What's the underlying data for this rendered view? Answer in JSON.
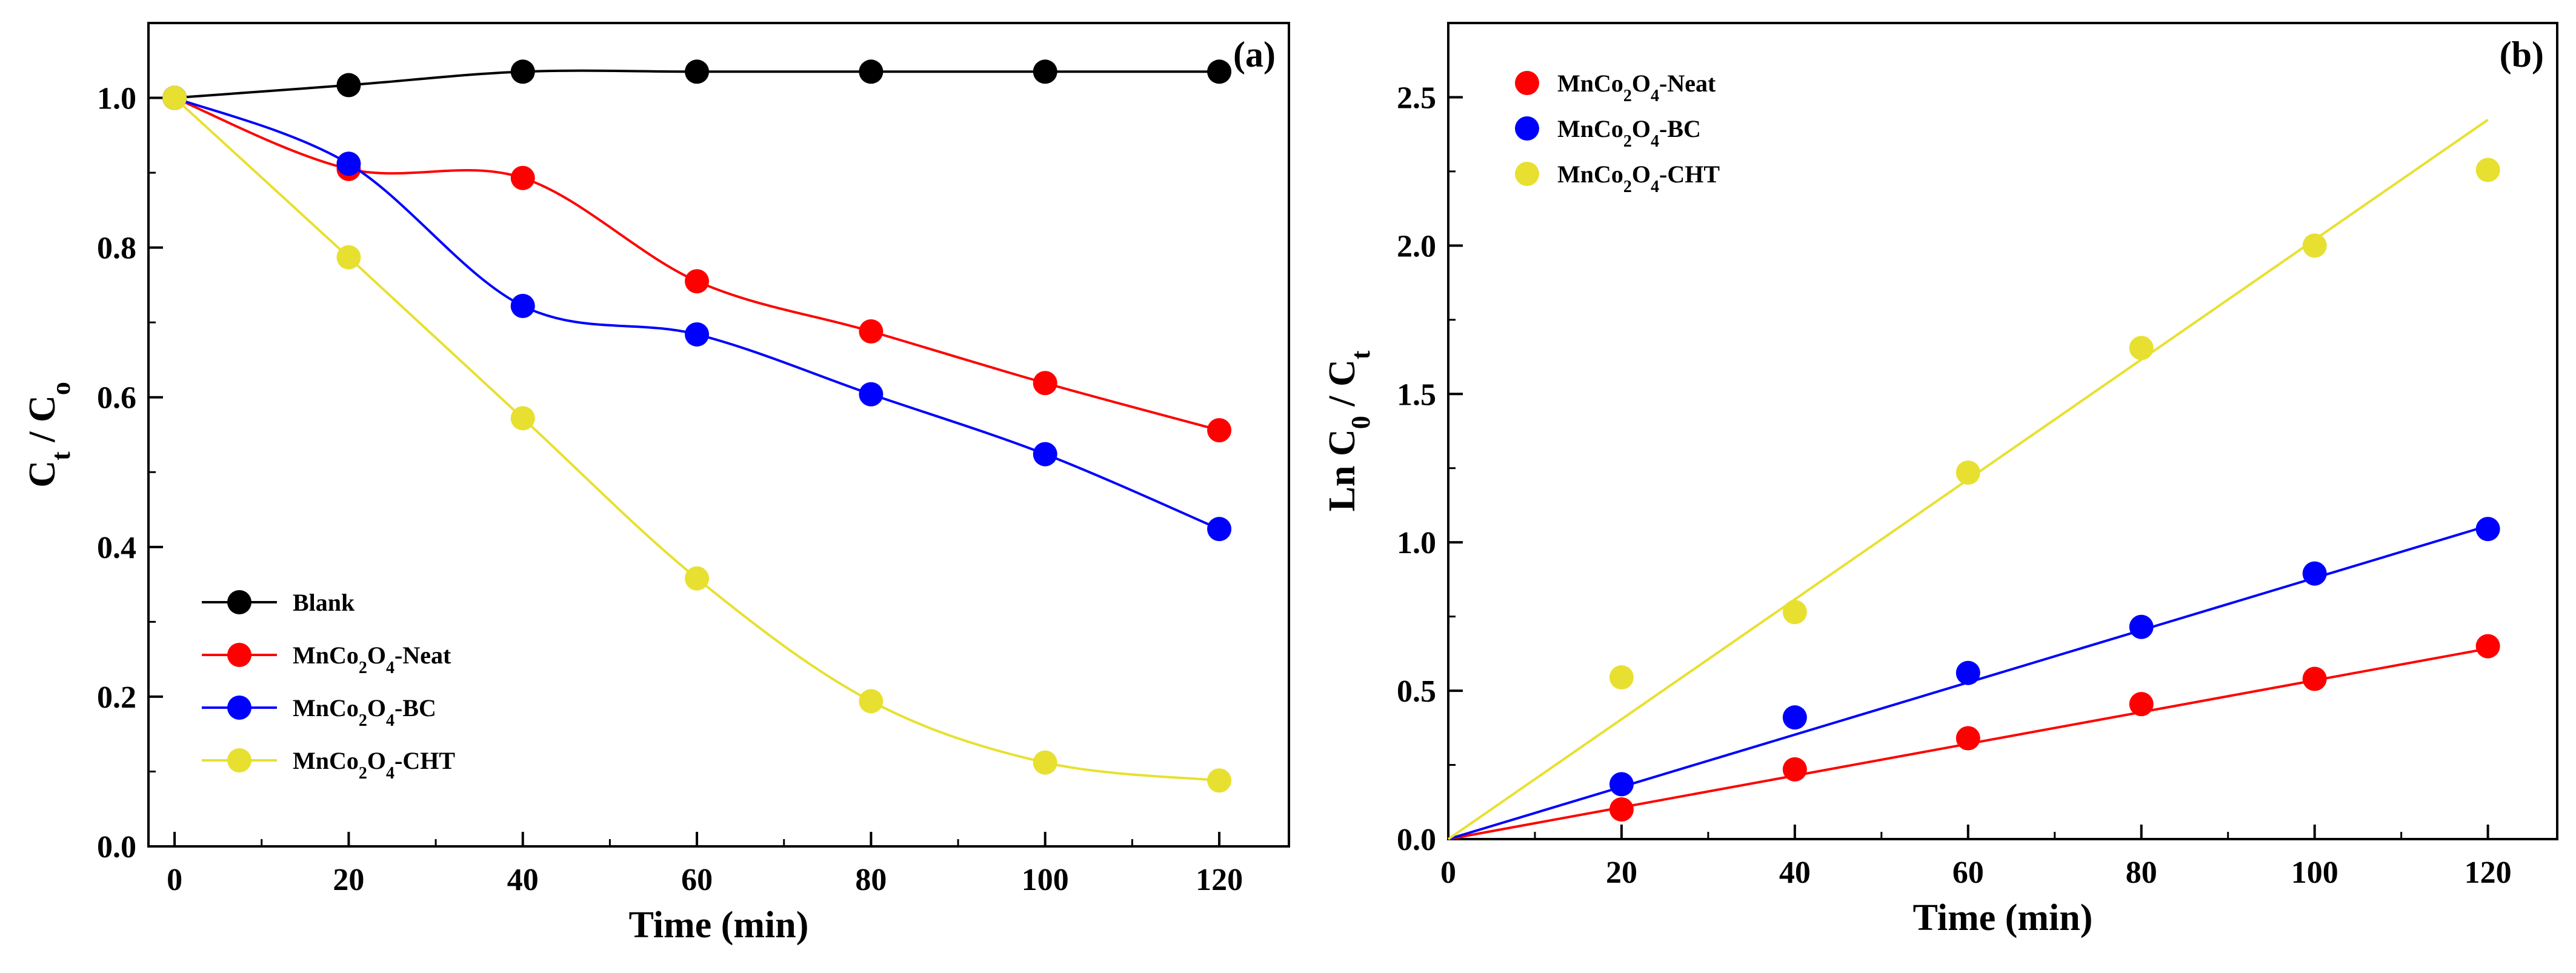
{
  "chart_data": [
    {
      "type": "line",
      "panel_label": "(a)",
      "xlabel": "Time (min)",
      "ylabel_parts": [
        "C",
        "t",
        " / C",
        "o"
      ],
      "xlim": [
        -3,
        128
      ],
      "ylim": [
        0,
        1.1
      ],
      "x_ticks": [
        0,
        20,
        40,
        60,
        80,
        100,
        120
      ],
      "y_ticks": [
        0.0,
        0.2,
        0.4,
        0.6,
        0.8,
        1.0
      ],
      "y_tick_decimals": 1,
      "x_minor_step": 10,
      "y_minor_step": 0.1,
      "legend_position": "bottom-left",
      "x": [
        0,
        20,
        40,
        60,
        80,
        100,
        120
      ],
      "series": [
        {
          "name_parts": [
            "Blank"
          ],
          "color": "#000000",
          "values": [
            1.0,
            1.017,
            1.035,
            1.035,
            1.035,
            1.035,
            1.035
          ]
        },
        {
          "name_parts": [
            "MnCo",
            "2",
            "O",
            "4",
            "-Neat"
          ],
          "color": "#ff0000",
          "values": [
            1.0,
            0.905,
            0.893,
            0.755,
            0.688,
            0.619,
            0.556
          ]
        },
        {
          "name_parts": [
            "MnCo",
            "2",
            "O",
            "4",
            "-BC"
          ],
          "color": "#0000ff",
          "values": [
            1.0,
            0.912,
            0.722,
            0.684,
            0.604,
            0.524,
            0.424
          ]
        },
        {
          "name_parts": [
            "MnCo",
            "2",
            "O",
            "4",
            "-CHT"
          ],
          "color": "#e8e030",
          "values": [
            1.0,
            0.787,
            0.572,
            0.358,
            0.194,
            0.112,
            0.088
          ]
        }
      ]
    },
    {
      "type": "scatter",
      "panel_label": "(b)",
      "xlabel": "Time (min)",
      "ylabel_parts": [
        "Ln C",
        "0",
        " / C",
        "t"
      ],
      "xlim": [
        0,
        128
      ],
      "ylim": [
        0,
        2.75
      ],
      "x_ticks": [
        0,
        20,
        40,
        60,
        80,
        100,
        120
      ],
      "y_ticks": [
        0.0,
        0.5,
        1.0,
        1.5,
        2.0,
        2.5
      ],
      "y_tick_decimals": 1,
      "x_minor_step": 10,
      "y_minor_step": 0.25,
      "legend_position": "top-left",
      "x": [
        20,
        40,
        60,
        80,
        100,
        120
      ],
      "series": [
        {
          "name_parts": [
            "MnCo",
            "2",
            "O",
            "4",
            "-Neat"
          ],
          "color": "#ff0000",
          "values": [
            0.1,
            0.235,
            0.34,
            0.455,
            0.54,
            0.65
          ],
          "fit_slope": 0.00535
        },
        {
          "name_parts": [
            "MnCo",
            "2",
            "O",
            "4",
            "-BC"
          ],
          "color": "#0000ff",
          "values": [
            0.185,
            0.41,
            0.56,
            0.715,
            0.895,
            1.045
          ],
          "fit_slope": 0.0088
        },
        {
          "name_parts": [
            "MnCo",
            "2",
            "O",
            "4",
            "-CHT"
          ],
          "color": "#e8e030",
          "values": [
            0.545,
            0.765,
            1.235,
            1.655,
            2.0,
            2.255
          ],
          "fit_slope": 0.0202
        }
      ]
    }
  ]
}
